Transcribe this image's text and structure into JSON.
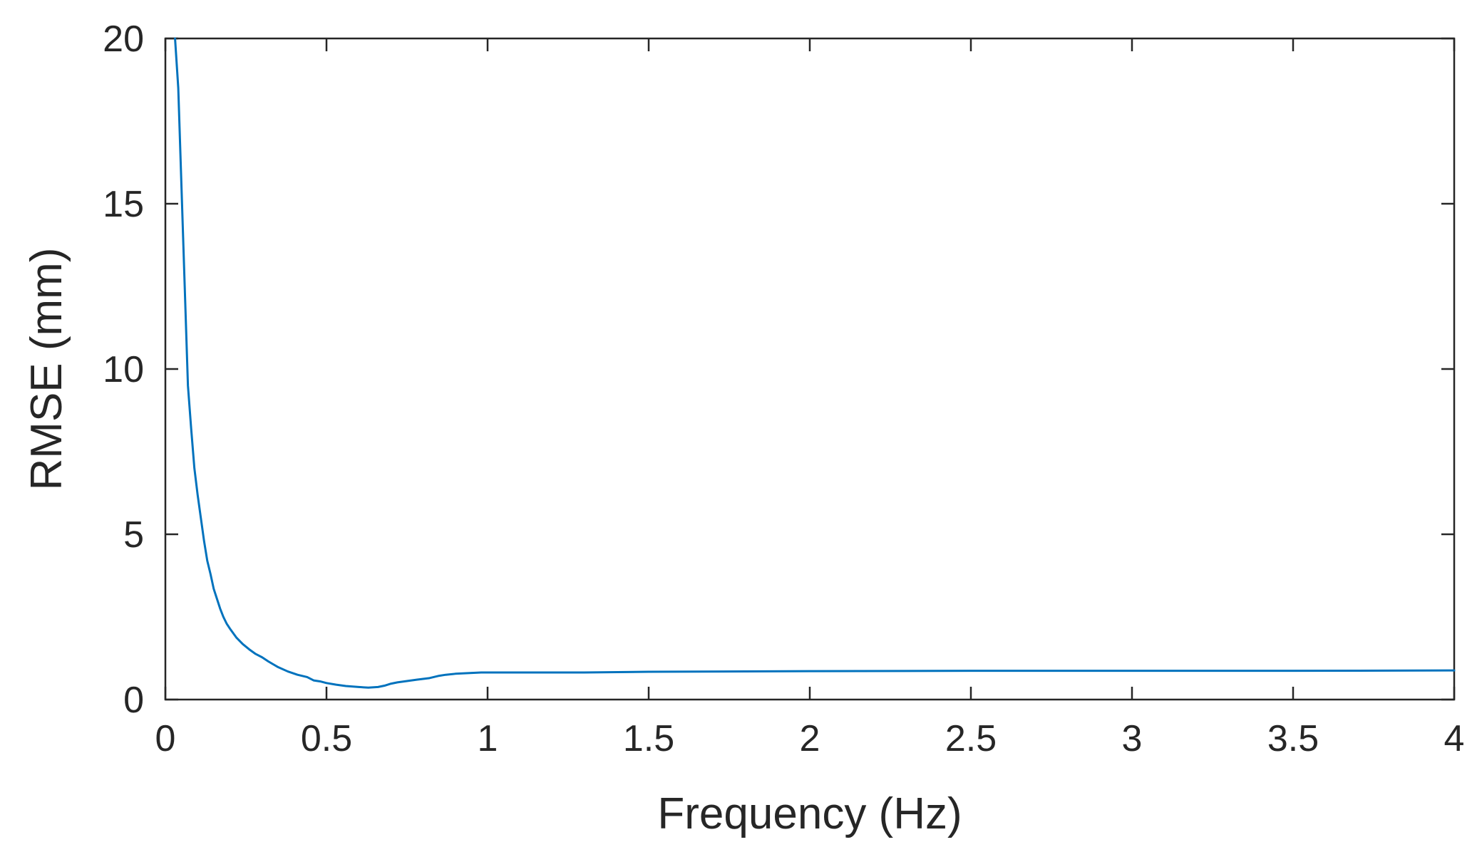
{
  "chart_data": {
    "type": "line",
    "title": "",
    "xlabel": "Frequency (Hz)",
    "ylabel": "RMSE (mm)",
    "xlim": [
      0,
      4
    ],
    "ylim": [
      0,
      20
    ],
    "xticks": [
      0,
      0.5,
      1,
      1.5,
      2,
      2.5,
      3,
      3.5,
      4
    ],
    "xtick_labels": [
      "0",
      "0.5",
      "1",
      "1.5",
      "2",
      "2.5",
      "3",
      "3.5",
      "4"
    ],
    "yticks": [
      0,
      5,
      10,
      15,
      20
    ],
    "ytick_labels": [
      "0",
      "5",
      "10",
      "15",
      "20"
    ],
    "grid": false,
    "box": true,
    "series": [
      {
        "color": "#0072BD",
        "x": [
          0.03,
          0.04,
          0.05,
          0.06,
          0.07,
          0.08,
          0.09,
          0.1,
          0.11,
          0.12,
          0.13,
          0.14,
          0.15,
          0.16,
          0.17,
          0.18,
          0.19,
          0.2,
          0.22,
          0.24,
          0.26,
          0.28,
          0.3,
          0.32,
          0.35,
          0.38,
          0.41,
          0.44,
          0.46,
          0.48,
          0.5,
          0.53,
          0.56,
          0.6,
          0.63,
          0.66,
          0.68,
          0.7,
          0.72,
          0.75,
          0.78,
          0.82,
          0.85,
          0.87,
          0.9,
          0.94,
          0.98,
          1.0,
          1.1,
          1.2,
          1.3,
          1.5,
          2.0,
          2.5,
          3.0,
          3.5,
          4.0
        ],
        "y": [
          20.0,
          18.5,
          15.5,
          12.5,
          9.5,
          8.2,
          7.0,
          6.2,
          5.5,
          4.8,
          4.2,
          3.8,
          3.35,
          3.05,
          2.75,
          2.5,
          2.3,
          2.15,
          1.88,
          1.68,
          1.52,
          1.38,
          1.28,
          1.15,
          0.98,
          0.85,
          0.75,
          0.68,
          0.58,
          0.55,
          0.5,
          0.45,
          0.41,
          0.38,
          0.36,
          0.38,
          0.42,
          0.48,
          0.52,
          0.56,
          0.6,
          0.65,
          0.72,
          0.75,
          0.78,
          0.8,
          0.82,
          0.82,
          0.82,
          0.82,
          0.82,
          0.84,
          0.86,
          0.87,
          0.87,
          0.87,
          0.88
        ]
      }
    ]
  }
}
